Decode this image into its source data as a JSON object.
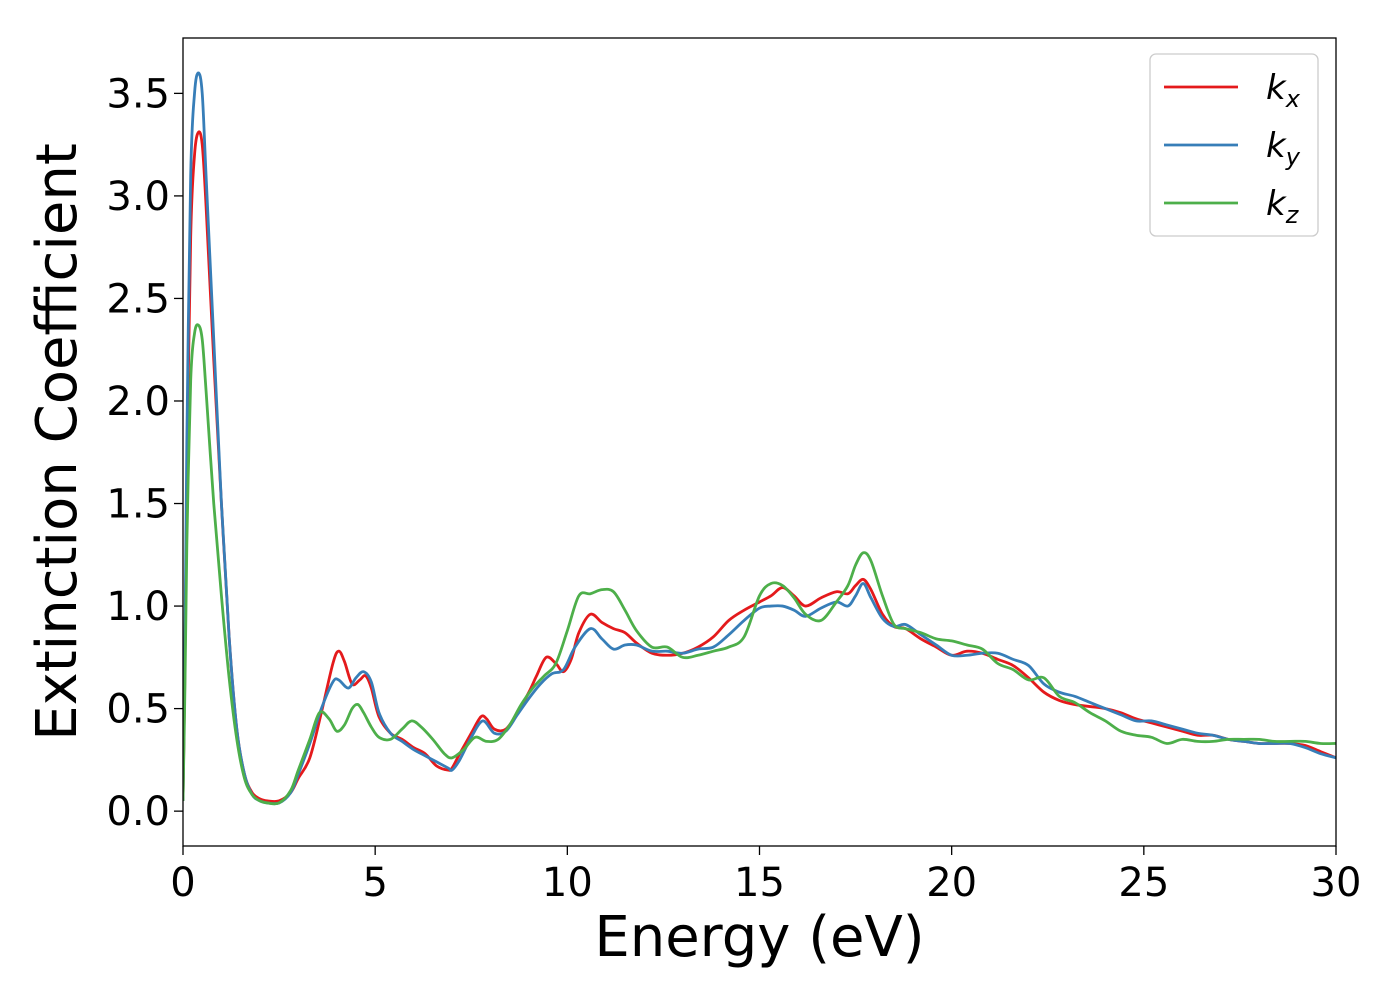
{
  "chart_data": {
    "type": "line",
    "title": "",
    "xlabel": "Energy (eV)",
    "ylabel": "Extinction Coefficient",
    "xlim": [
      0,
      30
    ],
    "ylim": [
      -0.17,
      3.77
    ],
    "xticks": [
      0,
      5,
      10,
      15,
      20,
      25,
      30
    ],
    "xtick_labels": [
      "0",
      "5",
      "10",
      "15",
      "20",
      "25",
      "30"
    ],
    "yticks": [
      0.0,
      0.5,
      1.0,
      1.5,
      2.0,
      2.5,
      3.0,
      3.5
    ],
    "ytick_labels": [
      "0.0",
      "0.5",
      "1.0",
      "1.5",
      "2.0",
      "2.5",
      "3.0",
      "3.5"
    ],
    "grid": false,
    "legend_position": "top-right",
    "series": [
      {
        "name": "k",
        "subscript": "x",
        "color": "#e41a1c",
        "x": [
          0,
          0.05,
          0.1,
          0.2,
          0.3,
          0.4,
          0.5,
          0.6,
          0.8,
          1.0,
          1.2,
          1.4,
          1.6,
          1.8,
          2.0,
          2.2,
          2.5,
          2.8,
          3.0,
          3.3,
          3.6,
          3.9,
          4.05,
          4.2,
          4.4,
          4.6,
          4.75,
          4.9,
          5.1,
          5.4,
          5.7,
          6.0,
          6.3,
          6.6,
          6.9,
          7.0,
          7.2,
          7.5,
          7.75,
          7.9,
          8.1,
          8.4,
          8.7,
          9.0,
          9.2,
          9.45,
          9.7,
          9.9,
          10.1,
          10.3,
          10.6,
          10.9,
          11.2,
          11.5,
          11.8,
          12.2,
          12.6,
          13.0,
          13.4,
          13.8,
          14.2,
          14.6,
          15.0,
          15.3,
          15.6,
          15.9,
          16.2,
          16.6,
          17.0,
          17.3,
          17.5,
          17.7,
          17.9,
          18.2,
          18.5,
          18.8,
          19.2,
          19.6,
          20.0,
          20.4,
          20.8,
          21.2,
          21.6,
          22.0,
          22.4,
          22.8,
          23.2,
          23.6,
          24.0,
          24.4,
          24.8,
          25.2,
          25.6,
          26.0,
          26.4,
          26.8,
          27.2,
          27.6,
          28.0,
          28.4,
          28.8,
          29.2,
          29.6,
          30.0
        ],
        "values": [
          0.05,
          0.7,
          1.6,
          2.8,
          3.2,
          3.31,
          3.25,
          2.95,
          2.2,
          1.5,
          0.85,
          0.4,
          0.18,
          0.09,
          0.06,
          0.05,
          0.05,
          0.09,
          0.16,
          0.26,
          0.48,
          0.72,
          0.78,
          0.73,
          0.62,
          0.64,
          0.66,
          0.6,
          0.46,
          0.38,
          0.35,
          0.31,
          0.28,
          0.22,
          0.2,
          0.21,
          0.28,
          0.38,
          0.46,
          0.45,
          0.4,
          0.4,
          0.48,
          0.58,
          0.66,
          0.75,
          0.72,
          0.68,
          0.74,
          0.87,
          0.96,
          0.92,
          0.89,
          0.87,
          0.82,
          0.77,
          0.76,
          0.77,
          0.8,
          0.85,
          0.93,
          0.98,
          1.02,
          1.05,
          1.09,
          1.05,
          1.0,
          1.04,
          1.07,
          1.06,
          1.1,
          1.13,
          1.08,
          0.96,
          0.9,
          0.89,
          0.84,
          0.8,
          0.76,
          0.78,
          0.77,
          0.74,
          0.71,
          0.65,
          0.58,
          0.54,
          0.52,
          0.51,
          0.5,
          0.48,
          0.45,
          0.43,
          0.41,
          0.39,
          0.37,
          0.37,
          0.35,
          0.34,
          0.33,
          0.33,
          0.33,
          0.32,
          0.29,
          0.26
        ]
      },
      {
        "name": "k",
        "subscript": "y",
        "color": "#377eb8",
        "x": [
          0,
          0.05,
          0.1,
          0.2,
          0.3,
          0.4,
          0.5,
          0.6,
          0.8,
          1.0,
          1.2,
          1.4,
          1.6,
          1.8,
          2.0,
          2.2,
          2.5,
          2.8,
          3.0,
          3.3,
          3.6,
          3.9,
          4.05,
          4.3,
          4.5,
          4.7,
          4.9,
          5.1,
          5.4,
          5.7,
          6.0,
          6.3,
          6.6,
          6.9,
          7.0,
          7.2,
          7.5,
          7.8,
          8.1,
          8.4,
          8.7,
          9.0,
          9.3,
          9.6,
          9.9,
          10.2,
          10.6,
          10.9,
          11.2,
          11.5,
          11.8,
          12.2,
          12.6,
          13.0,
          13.4,
          13.8,
          14.2,
          14.6,
          15.0,
          15.3,
          15.6,
          15.9,
          16.2,
          16.6,
          17.0,
          17.3,
          17.5,
          17.7,
          17.9,
          18.2,
          18.5,
          18.8,
          19.2,
          19.6,
          20.0,
          20.4,
          20.8,
          21.2,
          21.6,
          22.0,
          22.4,
          22.8,
          23.2,
          23.6,
          24.0,
          24.4,
          24.8,
          25.2,
          25.6,
          26.0,
          26.4,
          26.8,
          27.2,
          27.6,
          28.0,
          28.4,
          28.8,
          29.2,
          29.6,
          30.0
        ],
        "values": [
          0.05,
          0.8,
          1.8,
          3.1,
          3.5,
          3.6,
          3.5,
          3.1,
          2.3,
          1.5,
          0.85,
          0.4,
          0.18,
          0.08,
          0.05,
          0.04,
          0.04,
          0.09,
          0.18,
          0.33,
          0.5,
          0.63,
          0.64,
          0.6,
          0.65,
          0.68,
          0.63,
          0.48,
          0.38,
          0.34,
          0.3,
          0.27,
          0.24,
          0.21,
          0.2,
          0.25,
          0.36,
          0.44,
          0.38,
          0.39,
          0.47,
          0.55,
          0.62,
          0.67,
          0.69,
          0.8,
          0.89,
          0.84,
          0.79,
          0.81,
          0.81,
          0.78,
          0.78,
          0.77,
          0.79,
          0.8,
          0.86,
          0.93,
          0.99,
          1.0,
          1.0,
          0.98,
          0.95,
          0.99,
          1.02,
          1.0,
          1.05,
          1.11,
          1.04,
          0.94,
          0.9,
          0.91,
          0.86,
          0.81,
          0.76,
          0.76,
          0.77,
          0.77,
          0.74,
          0.71,
          0.62,
          0.58,
          0.56,
          0.53,
          0.5,
          0.47,
          0.44,
          0.44,
          0.42,
          0.4,
          0.38,
          0.37,
          0.35,
          0.34,
          0.33,
          0.33,
          0.33,
          0.31,
          0.28,
          0.26
        ]
      },
      {
        "name": "k",
        "subscript": "z",
        "color": "#4daf4a",
        "x": [
          0,
          0.05,
          0.1,
          0.2,
          0.3,
          0.4,
          0.5,
          0.6,
          0.8,
          1.0,
          1.2,
          1.4,
          1.6,
          1.8,
          2.0,
          2.2,
          2.5,
          2.8,
          3.0,
          3.3,
          3.55,
          3.8,
          4.0,
          4.2,
          4.4,
          4.55,
          4.7,
          4.9,
          5.1,
          5.4,
          5.7,
          5.95,
          6.2,
          6.5,
          6.8,
          7.0,
          7.3,
          7.6,
          7.9,
          8.2,
          8.5,
          8.8,
          9.1,
          9.4,
          9.7,
          10.0,
          10.3,
          10.6,
          10.9,
          11.2,
          11.5,
          11.8,
          12.2,
          12.6,
          13.0,
          13.4,
          13.8,
          14.2,
          14.6,
          15.0,
          15.3,
          15.6,
          15.9,
          16.2,
          16.6,
          17.0,
          17.3,
          17.5,
          17.7,
          17.9,
          18.2,
          18.5,
          18.8,
          19.2,
          19.6,
          20.0,
          20.4,
          20.8,
          21.2,
          21.6,
          22.0,
          22.4,
          22.8,
          23.2,
          23.6,
          24.0,
          24.4,
          24.8,
          25.2,
          25.6,
          26.0,
          26.4,
          26.8,
          27.2,
          27.6,
          28.0,
          28.4,
          28.8,
          29.2,
          29.6,
          30.0
        ],
        "values": [
          0.05,
          0.6,
          1.3,
          2.1,
          2.33,
          2.37,
          2.3,
          2.05,
          1.5,
          1.05,
          0.65,
          0.35,
          0.16,
          0.08,
          0.05,
          0.04,
          0.04,
          0.1,
          0.2,
          0.35,
          0.48,
          0.45,
          0.39,
          0.42,
          0.5,
          0.52,
          0.48,
          0.41,
          0.36,
          0.35,
          0.4,
          0.44,
          0.41,
          0.35,
          0.28,
          0.26,
          0.3,
          0.36,
          0.34,
          0.35,
          0.42,
          0.52,
          0.6,
          0.66,
          0.72,
          0.88,
          1.05,
          1.06,
          1.08,
          1.07,
          0.98,
          0.88,
          0.8,
          0.8,
          0.75,
          0.76,
          0.78,
          0.8,
          0.85,
          1.05,
          1.11,
          1.1,
          1.04,
          0.96,
          0.93,
          1.02,
          1.1,
          1.2,
          1.26,
          1.22,
          1.05,
          0.91,
          0.89,
          0.87,
          0.84,
          0.83,
          0.81,
          0.79,
          0.72,
          0.69,
          0.64,
          0.65,
          0.56,
          0.53,
          0.48,
          0.44,
          0.39,
          0.37,
          0.36,
          0.33,
          0.35,
          0.34,
          0.34,
          0.35,
          0.35,
          0.35,
          0.34,
          0.34,
          0.34,
          0.33,
          0.33
        ]
      }
    ]
  }
}
